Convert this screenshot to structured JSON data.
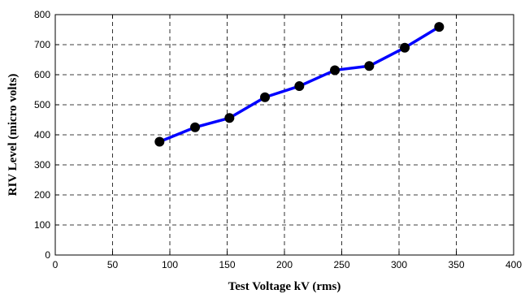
{
  "chart_data": {
    "type": "line",
    "title": "",
    "xlabel": "Test Voltage kV (rms)",
    "ylabel": "RIV Level (micro volts)",
    "xlim": [
      0,
      400
    ],
    "ylim": [
      0,
      800
    ],
    "xticks": [
      0,
      50,
      100,
      150,
      200,
      250,
      300,
      350,
      400
    ],
    "yticks": [
      0,
      100,
      200,
      300,
      400,
      500,
      600,
      700,
      800
    ],
    "grid": true,
    "legend": "none",
    "series": [
      {
        "x": [
          91,
          122,
          152,
          183,
          213,
          244,
          274,
          305,
          335
        ],
        "y": [
          377,
          425,
          456,
          525,
          562,
          615,
          629,
          690,
          759
        ],
        "line_color": "#0000ff",
        "marker_color": "#000000"
      }
    ]
  }
}
